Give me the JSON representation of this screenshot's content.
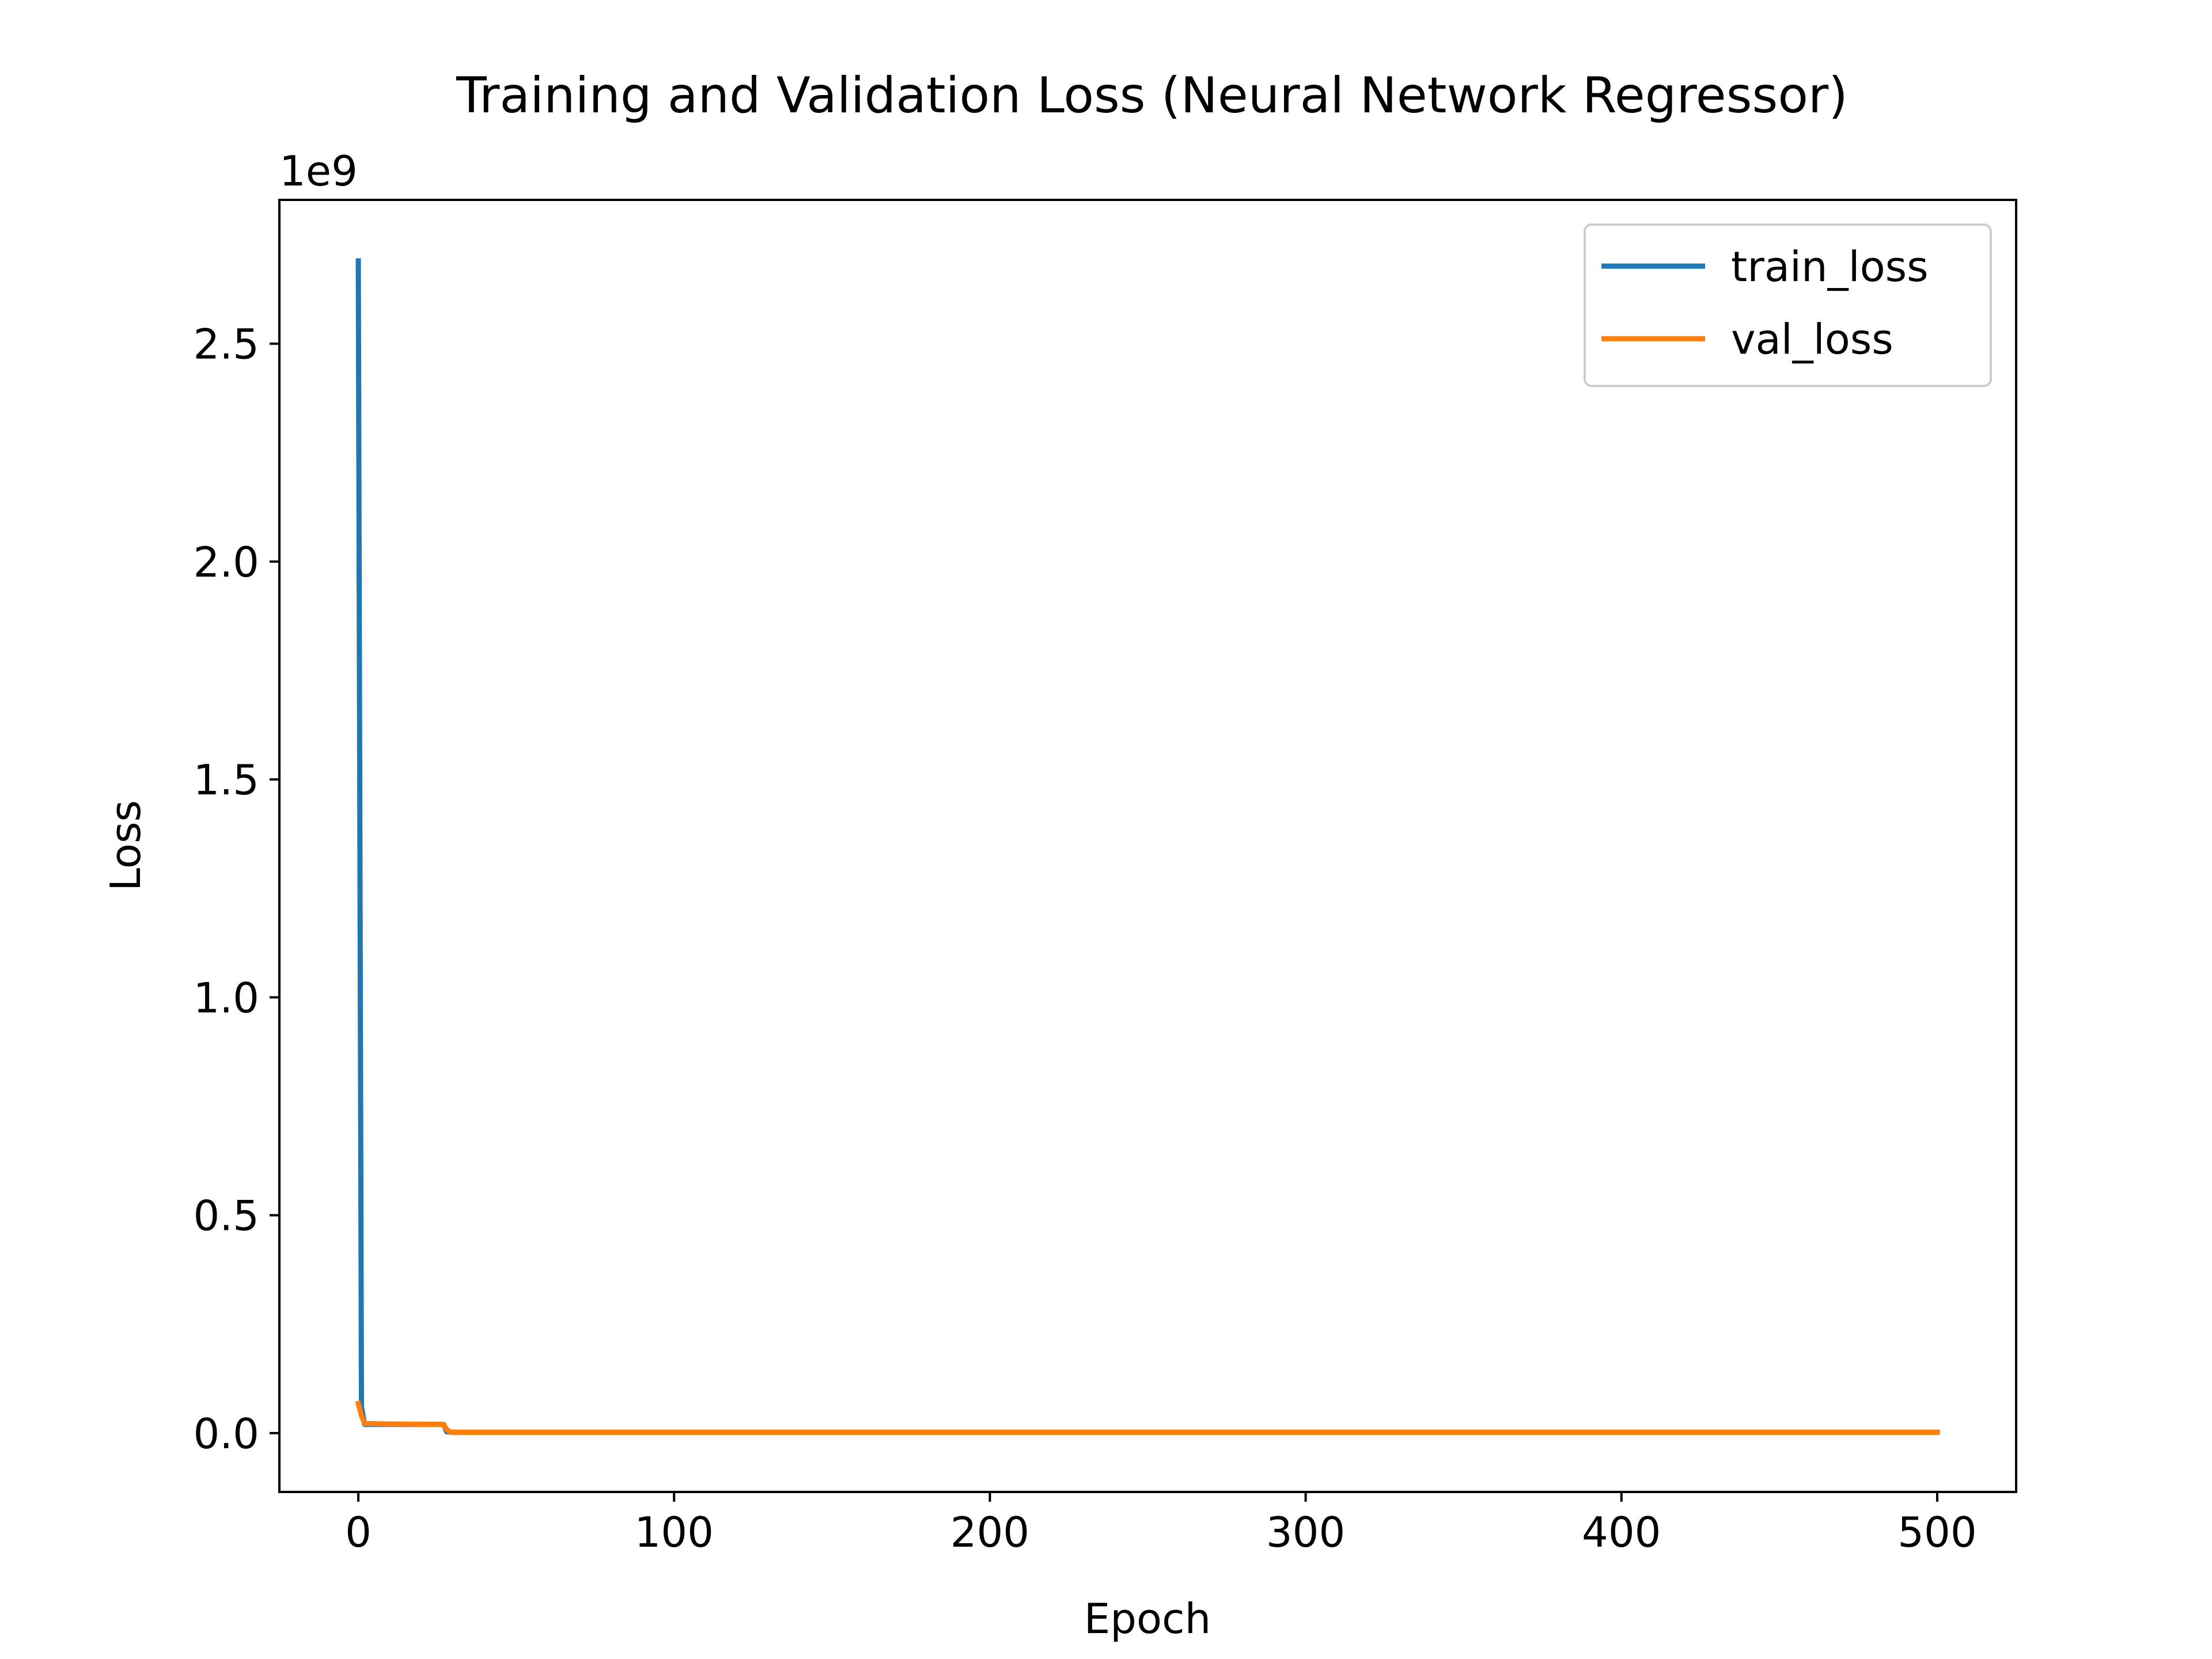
{
  "chart_data": {
    "type": "line",
    "title": "Training and Validation Loss (Neural Network Regressor)",
    "xlabel": "Epoch",
    "ylabel": "Loss",
    "y_offset_label": "1e9",
    "xlim": [
      -25,
      525
    ],
    "ylim": [
      -0.135,
      2.83
    ],
    "x_ticks": [
      0,
      100,
      200,
      300,
      400,
      500
    ],
    "x_tick_labels": [
      "0",
      "100",
      "200",
      "300",
      "400",
      "500"
    ],
    "y_ticks": [
      0.0,
      0.5,
      1.0,
      1.5,
      2.0,
      2.5
    ],
    "y_tick_labels": [
      "0.0",
      "0.5",
      "1.0",
      "1.5",
      "2.0",
      "2.5"
    ],
    "grid": false,
    "legend_position": "upper right",
    "series": [
      {
        "name": "train_loss",
        "color": "#1f77b4",
        "points": [
          [
            0,
            2.69
          ],
          [
            1,
            0.06
          ],
          [
            2,
            0.02
          ],
          [
            10,
            0.02
          ],
          [
            27,
            0.02
          ],
          [
            28,
            0.003
          ],
          [
            30,
            0.002
          ],
          [
            500,
            0.002
          ]
        ]
      },
      {
        "name": "val_loss",
        "color": "#ff7f0e",
        "points": [
          [
            0,
            0.068
          ],
          [
            1,
            0.04
          ],
          [
            2,
            0.022
          ],
          [
            10,
            0.021
          ],
          [
            27,
            0.02
          ],
          [
            28,
            0.008
          ],
          [
            29,
            0.003
          ],
          [
            30,
            0.002
          ],
          [
            500,
            0.002
          ]
        ]
      }
    ]
  }
}
